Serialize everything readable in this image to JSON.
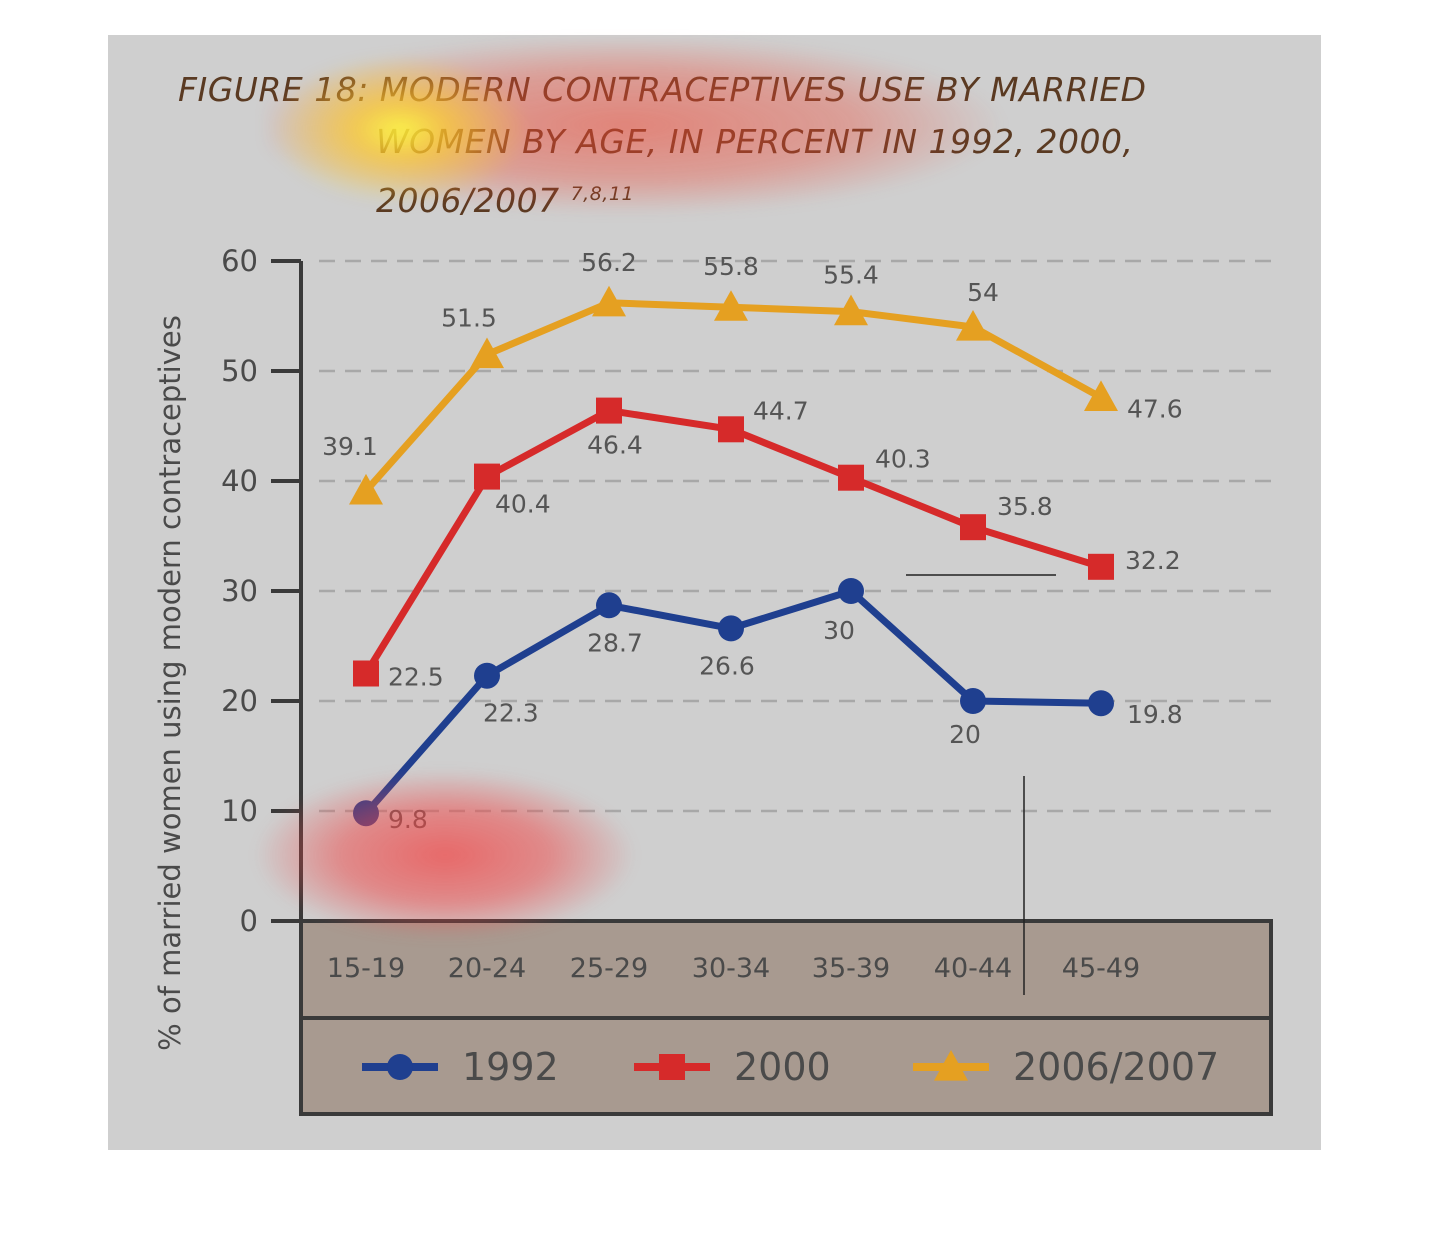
{
  "figure": {
    "title_line1": "FIGURE 18: MODERN CONTRACEPTIVES USE BY MARRIED",
    "title_line2": "WOMEN BY AGE, IN PERCENT IN 1992, 2000,",
    "title_line3": "2006/2007",
    "title_refs": "7,8,11"
  },
  "chart_data": {
    "type": "line",
    "title": "MODERN CONTRACEPTIVES USE BY MARRIED WOMEN BY AGE, IN PERCENT IN 1992, 2000, 2006/2007",
    "ylabel": "% of married women using modern contraceptives",
    "xlabel": "",
    "ylim": [
      0,
      60
    ],
    "yticks": [
      0,
      10,
      20,
      30,
      40,
      50,
      60
    ],
    "grid": true,
    "legend_position": "bottom",
    "categories": [
      "15-19",
      "20-24",
      "25-29",
      "30-34",
      "35-39",
      "40-44",
      "45-49"
    ],
    "series": [
      {
        "name": "1992",
        "color": "#1f3f8f",
        "marker": "circle",
        "values": [
          9.8,
          22.3,
          28.7,
          26.6,
          30,
          20,
          19.8
        ],
        "plotted_values": [
          9.8,
          22.3,
          28.7,
          26.6,
          30,
          20,
          19.8
        ]
      },
      {
        "name": "2000",
        "color": "#d62a2a",
        "marker": "square",
        "values": [
          22.5,
          40.4,
          46.4,
          44.7,
          40.3,
          35.8,
          32.2
        ],
        "plotted_values": [
          22.5,
          40.4,
          46.4,
          44.7,
          40.3,
          35.8,
          32.2
        ]
      },
      {
        "name": "2006/2007",
        "color": "#e5a021",
        "marker": "triangle",
        "values": [
          39.1,
          51.5,
          56.2,
          55.8,
          55.4,
          54,
          47.6
        ],
        "plotted_values": [
          39.1,
          51.5,
          56.2,
          55.8,
          55.4,
          54,
          47.6
        ]
      }
    ]
  },
  "colors": {
    "panel": "#cfcfcf",
    "axis_band": "#a89a90",
    "grid": "#a8a8a8",
    "title_text": "#5a3a22"
  }
}
